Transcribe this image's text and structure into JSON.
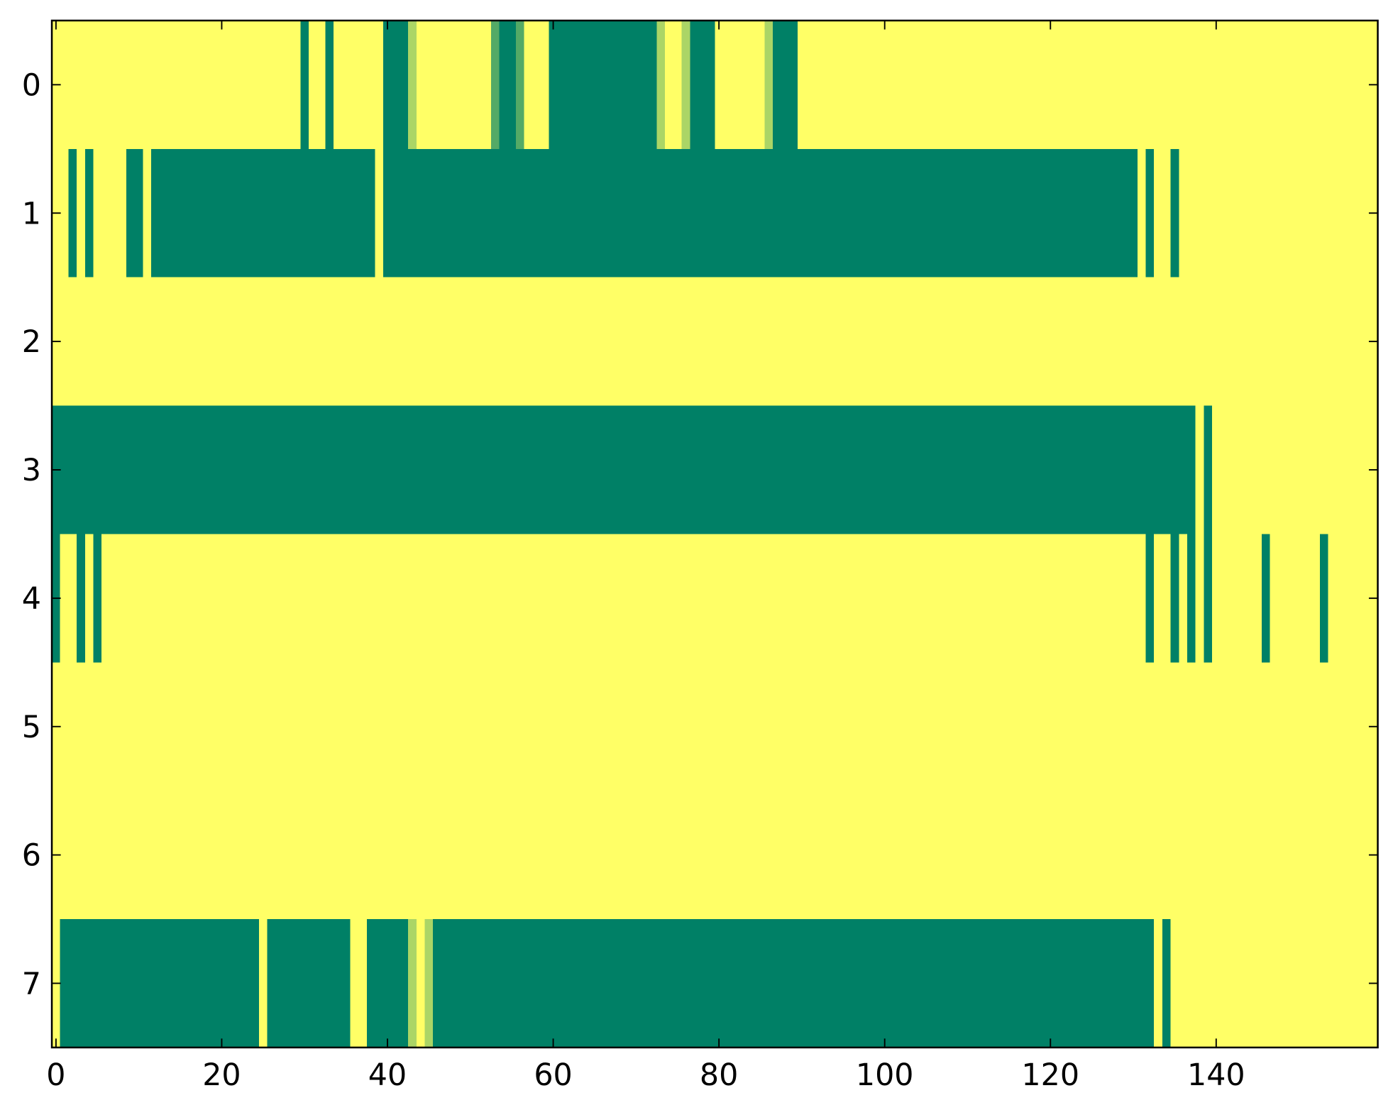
{
  "chart_data": {
    "type": "heatmap",
    "colormap": "summer",
    "xlim": [
      -0.5,
      159.5
    ],
    "ylim": [
      7.5,
      -0.5
    ],
    "xticks": [
      0,
      20,
      40,
      60,
      80,
      100,
      120,
      140
    ],
    "yticks": [
      0,
      1,
      2,
      3,
      4,
      5,
      6,
      7
    ],
    "z": [
      [
        1,
        1,
        1,
        1,
        1,
        1,
        1,
        1,
        1,
        1,
        1,
        1,
        1,
        1,
        1,
        1,
        1,
        1,
        1,
        1,
        1,
        1,
        1,
        1,
        1,
        1,
        1,
        1,
        1,
        1,
        0,
        1,
        1,
        0,
        1,
        1,
        1,
        1,
        1,
        1,
        0,
        0,
        0,
        0.67,
        1,
        1,
        1,
        1,
        1,
        1,
        1,
        1,
        1,
        0.33,
        0,
        0,
        0.33,
        1,
        1,
        1,
        0,
        0,
        0,
        0,
        0,
        0,
        0,
        0,
        0,
        0,
        0,
        0,
        0,
        0.67,
        1,
        1,
        0.67,
        0,
        0,
        0,
        1,
        1,
        1,
        1,
        1,
        1,
        0.67,
        0,
        0,
        0,
        1,
        1,
        1,
        1,
        1,
        1,
        1,
        1,
        1,
        1,
        1,
        1,
        1,
        1,
        1,
        1,
        1,
        1,
        1,
        1,
        1,
        1,
        1,
        1,
        1,
        1,
        1,
        1,
        1,
        1,
        1,
        1,
        1,
        1,
        1,
        1,
        1,
        1,
        1,
        1,
        1,
        1,
        1,
        1,
        1,
        1,
        1,
        1,
        1,
        1,
        1,
        1,
        1,
        1,
        1,
        1,
        1,
        1,
        1,
        1,
        1,
        1,
        1,
        1,
        1,
        1,
        1,
        1,
        1,
        1
      ],
      [
        1,
        1,
        0,
        1,
        0,
        1,
        1,
        1,
        1,
        0,
        0,
        1,
        0,
        0,
        0,
        0,
        0,
        0,
        0,
        0,
        0,
        0,
        0,
        0,
        0,
        0,
        0,
        0,
        0,
        0,
        0,
        0,
        0,
        0,
        0,
        0,
        0,
        0,
        0,
        1,
        0,
        0,
        0,
        0,
        0,
        0,
        0,
        0,
        0,
        0,
        0,
        0,
        0,
        0,
        0,
        0,
        0,
        0,
        0,
        0,
        0,
        0,
        0,
        0,
        0,
        0,
        0,
        0,
        0,
        0,
        0,
        0,
        0,
        0,
        0,
        0,
        0,
        0,
        0,
        0,
        0,
        0,
        0,
        0,
        0,
        0,
        0,
        0,
        0,
        0,
        0,
        0,
        0,
        0,
        0,
        0,
        0,
        0,
        0,
        0,
        0,
        0,
        0,
        0,
        0,
        0,
        0,
        0,
        0,
        0,
        0,
        0,
        0,
        0,
        0,
        0,
        0,
        0,
        0,
        0,
        0,
        0,
        0,
        0,
        0,
        0,
        0,
        0,
        0,
        0,
        0,
        1,
        0,
        1,
        1,
        0,
        1,
        1,
        1,
        1,
        1,
        1,
        1,
        1,
        1,
        1,
        1,
        1,
        1,
        1,
        1,
        1,
        1,
        1,
        1,
        1,
        1,
        1,
        1,
        1
      ],
      [
        1,
        1,
        1,
        1,
        1,
        1,
        1,
        1,
        1,
        1,
        1,
        1,
        1,
        1,
        1,
        1,
        1,
        1,
        1,
        1,
        1,
        1,
        1,
        1,
        1,
        1,
        1,
        1,
        1,
        1,
        1,
        1,
        1,
        1,
        1,
        1,
        1,
        1,
        1,
        1,
        1,
        1,
        1,
        1,
        1,
        1,
        1,
        1,
        1,
        1,
        1,
        1,
        1,
        1,
        1,
        1,
        1,
        1,
        1,
        1,
        1,
        1,
        1,
        1,
        1,
        1,
        1,
        1,
        1,
        1,
        1,
        1,
        1,
        1,
        1,
        1,
        1,
        1,
        1,
        1,
        1,
        1,
        1,
        1,
        1,
        1,
        1,
        1,
        1,
        1,
        1,
        1,
        1,
        1,
        1,
        1,
        1,
        1,
        1,
        1,
        1,
        1,
        1,
        1,
        1,
        1,
        1,
        1,
        1,
        1,
        1,
        1,
        1,
        1,
        1,
        1,
        1,
        1,
        1,
        1,
        1,
        1,
        1,
        1,
        1,
        1,
        1,
        1,
        1,
        1,
        1,
        1,
        1,
        1,
        1,
        1,
        1,
        1,
        1,
        1,
        1,
        1,
        1,
        1,
        1,
        1,
        1,
        1,
        1,
        1,
        1,
        1,
        1,
        1,
        1,
        1,
        1,
        1,
        1,
        1
      ],
      [
        0,
        0,
        0,
        0,
        0,
        0,
        0,
        0,
        0,
        0,
        0,
        0,
        0,
        0,
        0,
        0,
        0,
        0,
        0,
        0,
        0,
        0,
        0,
        0,
        0,
        0,
        0,
        0,
        0,
        0,
        0,
        0,
        0,
        0,
        0,
        0,
        0,
        0,
        0,
        0,
        0,
        0,
        0,
        0,
        0,
        0,
        0,
        0,
        0,
        0,
        0,
        0,
        0,
        0,
        0,
        0,
        0,
        0,
        0,
        0,
        0,
        0,
        0,
        0,
        0,
        0,
        0,
        0,
        0,
        0,
        0,
        0,
        0,
        0,
        0,
        0,
        0,
        0,
        0,
        0,
        0,
        0,
        0,
        0,
        0,
        0,
        0,
        0,
        0,
        0,
        0,
        0,
        0,
        0,
        0,
        0,
        0,
        0,
        0,
        0,
        0,
        0,
        0,
        0,
        0,
        0,
        0,
        0,
        0,
        0,
        0,
        0,
        0,
        0,
        0,
        0,
        0,
        0,
        0,
        0,
        0,
        0,
        0,
        0,
        0,
        0,
        0,
        0,
        0,
        0,
        0,
        0,
        0,
        0,
        0,
        0,
        0,
        0,
        1,
        0,
        1,
        1,
        1,
        1,
        1,
        1,
        1,
        1,
        1,
        1,
        1,
        1,
        1,
        1,
        1,
        1,
        1,
        1,
        1,
        1
      ],
      [
        0,
        1,
        1,
        0,
        1,
        0,
        1,
        1,
        1,
        1,
        1,
        1,
        1,
        1,
        1,
        1,
        1,
        1,
        1,
        1,
        1,
        1,
        1,
        1,
        1,
        1,
        1,
        1,
        1,
        1,
        1,
        1,
        1,
        1,
        1,
        1,
        1,
        1,
        1,
        1,
        1,
        1,
        1,
        1,
        1,
        1,
        1,
        1,
        1,
        1,
        1,
        1,
        1,
        1,
        1,
        1,
        1,
        1,
        1,
        1,
        1,
        1,
        1,
        1,
        1,
        1,
        1,
        1,
        1,
        1,
        1,
        1,
        1,
        1,
        1,
        1,
        1,
        1,
        1,
        1,
        1,
        1,
        1,
        1,
        1,
        1,
        1,
        1,
        1,
        1,
        1,
        1,
        1,
        1,
        1,
        1,
        1,
        1,
        1,
        1,
        1,
        1,
        1,
        1,
        1,
        1,
        1,
        1,
        1,
        1,
        1,
        1,
        1,
        1,
        1,
        1,
        1,
        1,
        1,
        1,
        1,
        1,
        1,
        1,
        1,
        1,
        1,
        1,
        1,
        1,
        1,
        1,
        0,
        1,
        1,
        0,
        1,
        0,
        1,
        0,
        1,
        1,
        1,
        1,
        1,
        1,
        0,
        1,
        1,
        1,
        1,
        1,
        1,
        0,
        1,
        1,
        1,
        1,
        1,
        1
      ],
      [
        1,
        1,
        1,
        1,
        1,
        1,
        1,
        1,
        1,
        1,
        1,
        1,
        1,
        1,
        1,
        1,
        1,
        1,
        1,
        1,
        1,
        1,
        1,
        1,
        1,
        1,
        1,
        1,
        1,
        1,
        1,
        1,
        1,
        1,
        1,
        1,
        1,
        1,
        1,
        1,
        1,
        1,
        1,
        1,
        1,
        1,
        1,
        1,
        1,
        1,
        1,
        1,
        1,
        1,
        1,
        1,
        1,
        1,
        1,
        1,
        1,
        1,
        1,
        1,
        1,
        1,
        1,
        1,
        1,
        1,
        1,
        1,
        1,
        1,
        1,
        1,
        1,
        1,
        1,
        1,
        1,
        1,
        1,
        1,
        1,
        1,
        1,
        1,
        1,
        1,
        1,
        1,
        1,
        1,
        1,
        1,
        1,
        1,
        1,
        1,
        1,
        1,
        1,
        1,
        1,
        1,
        1,
        1,
        1,
        1,
        1,
        1,
        1,
        1,
        1,
        1,
        1,
        1,
        1,
        1,
        1,
        1,
        1,
        1,
        1,
        1,
        1,
        1,
        1,
        1,
        1,
        1,
        1,
        1,
        1,
        1,
        1,
        1,
        1,
        1,
        1,
        1,
        1,
        1,
        1,
        1,
        1,
        1,
        1,
        1,
        1,
        1,
        1,
        1,
        1,
        1,
        1,
        1,
        1,
        1
      ],
      [
        1,
        1,
        1,
        1,
        1,
        1,
        1,
        1,
        1,
        1,
        1,
        1,
        1,
        1,
        1,
        1,
        1,
        1,
        1,
        1,
        1,
        1,
        1,
        1,
        1,
        1,
        1,
        1,
        1,
        1,
        1,
        1,
        1,
        1,
        1,
        1,
        1,
        1,
        1,
        1,
        1,
        1,
        1,
        1,
        1,
        1,
        1,
        1,
        1,
        1,
        1,
        1,
        1,
        1,
        1,
        1,
        1,
        1,
        1,
        1,
        1,
        1,
        1,
        1,
        1,
        1,
        1,
        1,
        1,
        1,
        1,
        1,
        1,
        1,
        1,
        1,
        1,
        1,
        1,
        1,
        1,
        1,
        1,
        1,
        1,
        1,
        1,
        1,
        1,
        1,
        1,
        1,
        1,
        1,
        1,
        1,
        1,
        1,
        1,
        1,
        1,
        1,
        1,
        1,
        1,
        1,
        1,
        1,
        1,
        1,
        1,
        1,
        1,
        1,
        1,
        1,
        1,
        1,
        1,
        1,
        1,
        1,
        1,
        1,
        1,
        1,
        1,
        1,
        1,
        1,
        1,
        1,
        1,
        1,
        1,
        1,
        1,
        1,
        1,
        1,
        1,
        1,
        1,
        1,
        1,
        1,
        1,
        1,
        1,
        1,
        1,
        1,
        1,
        1,
        1,
        1,
        1,
        1,
        1,
        1
      ],
      [
        1,
        0,
        0,
        0,
        0,
        0,
        0,
        0,
        0,
        0,
        0,
        0,
        0,
        0,
        0,
        0,
        0,
        0,
        0,
        0,
        0,
        0,
        0,
        0,
        0,
        1,
        0,
        0,
        0,
        0,
        0,
        0,
        0,
        0,
        0,
        0,
        1,
        1,
        0,
        0,
        0,
        0,
        0,
        0.67,
        1,
        0.67,
        0,
        0,
        0,
        0,
        0,
        0,
        0,
        0,
        0,
        0,
        0,
        0,
        0,
        0,
        0,
        0,
        0,
        0,
        0,
        0,
        0,
        0,
        0,
        0,
        0,
        0,
        0,
        0,
        0,
        0,
        0,
        0,
        0,
        0,
        0,
        0,
        0,
        0,
        0,
        0,
        0,
        0,
        0,
        0,
        0,
        0,
        0,
        0,
        0,
        0,
        0,
        0,
        0,
        0,
        0,
        0,
        0,
        0,
        0,
        0,
        0,
        0,
        0,
        0,
        0,
        0,
        0,
        0,
        0,
        0,
        0,
        0,
        0,
        0,
        0,
        0,
        0,
        0,
        0,
        0,
        0,
        0,
        0,
        0,
        0,
        0,
        0,
        1,
        0,
        1,
        1,
        1,
        1,
        1,
        1,
        1,
        1,
        1,
        1,
        1,
        1,
        1,
        1,
        1,
        1,
        1,
        1,
        1,
        1,
        1,
        1,
        1,
        1,
        1
      ]
    ]
  }
}
